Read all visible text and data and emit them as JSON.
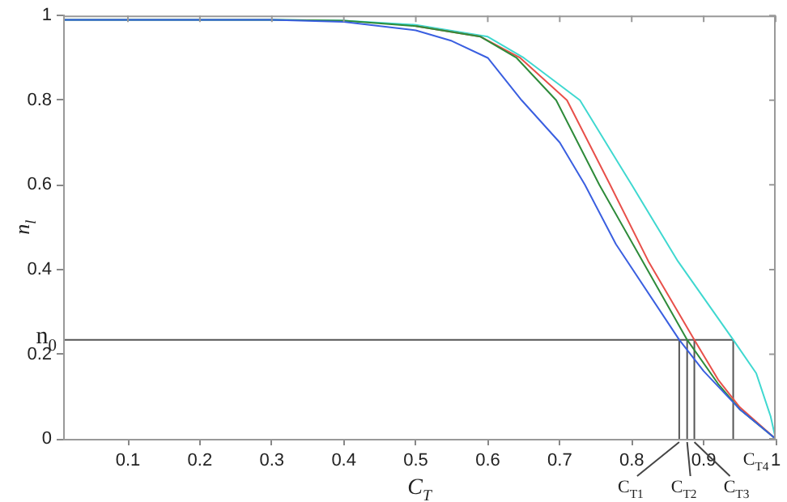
{
  "chart_data": {
    "type": "line",
    "xlabel": "C$_{T}$",
    "ylabel": "n$_{l}$",
    "xlim": [
      0.01,
      1
    ],
    "ylim": [
      0,
      1
    ],
    "xticks": [
      0.1,
      0.2,
      0.3,
      0.4,
      0.5,
      0.6,
      0.7,
      0.8,
      0.9,
      1
    ],
    "yticks": [
      0,
      0.2,
      0.4,
      0.6,
      0.8,
      1
    ],
    "grid": false,
    "legend": false,
    "marker": "none",
    "line_style": "solid",
    "series": [
      {
        "color": "#3a5fe0",
        "x": [
          0.01,
          0.3,
          0.4,
          0.5,
          0.55,
          0.6,
          0.647,
          0.7,
          0.735,
          0.778,
          0.866,
          0.9,
          0.95,
          1
        ],
        "values": [
          0.99,
          0.99,
          0.985,
          0.965,
          0.94,
          0.9,
          0.8,
          0.7,
          0.6,
          0.46,
          0.234,
          0.16,
          0.07,
          0
        ]
      },
      {
        "color": "#2e8b3a",
        "x": [
          0.01,
          0.3,
          0.4,
          0.5,
          0.59,
          0.64,
          0.695,
          0.755,
          0.815,
          0.877,
          0.92,
          0.95,
          1
        ],
        "values": [
          0.99,
          0.99,
          0.988,
          0.975,
          0.95,
          0.9,
          0.8,
          0.6,
          0.42,
          0.234,
          0.13,
          0.07,
          0
        ]
      },
      {
        "color": "#e8504a",
        "x": [
          0.5,
          0.59,
          0.645,
          0.71,
          0.77,
          0.823,
          0.887,
          0.92,
          0.95,
          1
        ],
        "values": [
          0.975,
          0.95,
          0.9,
          0.8,
          0.6,
          0.42,
          0.234,
          0.14,
          0.075,
          0
        ]
      },
      {
        "color": "#3fd8d0",
        "x": [
          0.01,
          0.3,
          0.4,
          0.5,
          0.6,
          0.65,
          0.728,
          0.8,
          0.864,
          0.941,
          0.973,
          0.993,
          1
        ],
        "values": [
          0.99,
          0.99,
          0.988,
          0.978,
          0.95,
          0.9,
          0.8,
          0.6,
          0.42,
          0.234,
          0.155,
          0.053,
          0
        ]
      },
      {
        "color": "#555555",
        "x": [
          0.01,
          0.941
        ],
        "values": [
          0.234,
          0.234
        ]
      },
      {
        "color": "#555555",
        "x": [
          0.866,
          0.866
        ],
        "values": [
          0,
          0.234
        ]
      },
      {
        "color": "#555555",
        "x": [
          0.877,
          0.877
        ],
        "values": [
          0,
          0.234
        ]
      },
      {
        "color": "#555555",
        "x": [
          0.887,
          0.887
        ],
        "values": [
          0,
          0.234
        ]
      },
      {
        "color": "#555555",
        "x": [
          0.941,
          0.941
        ],
        "values": [
          0,
          0.234
        ]
      }
    ],
    "annotations": [
      {
        "text": "n$_{0}$",
        "x": 0.01,
        "y": 0.234
      },
      {
        "text": "C$_{T1}$",
        "x": 0.866,
        "y": 0
      },
      {
        "text": "C$_{T2}$",
        "x": 0.877,
        "y": 0
      },
      {
        "text": "C$_{T3}$",
        "x": 0.887,
        "y": 0
      },
      {
        "text": "C$_{T4}$",
        "x": 0.941,
        "y": 0
      }
    ]
  }
}
